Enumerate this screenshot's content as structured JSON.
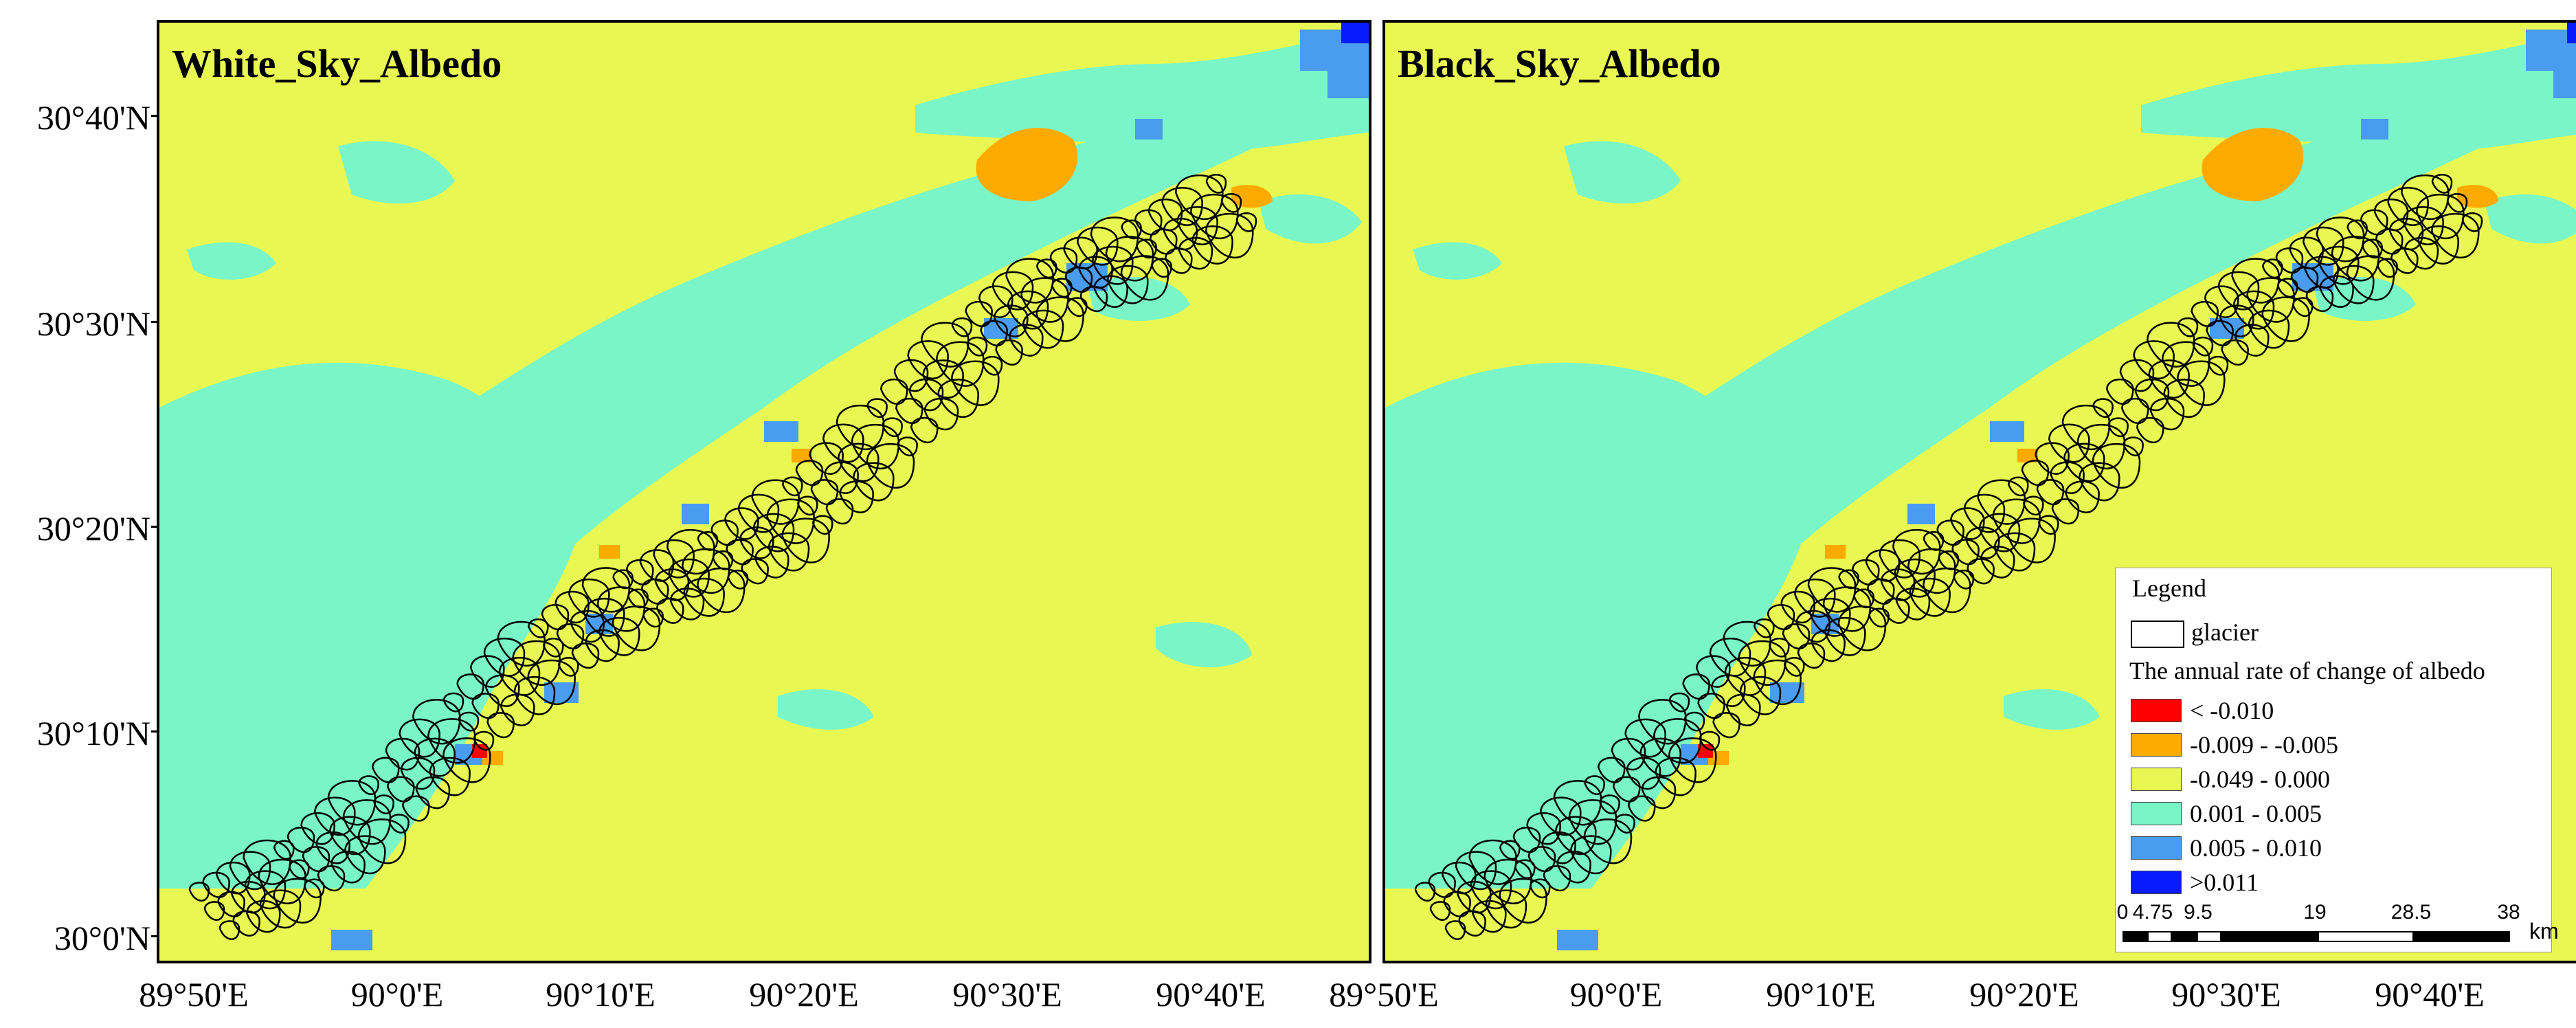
{
  "panels": [
    {
      "title": "White_Sky_Albedo"
    },
    {
      "title": "Black_Sky_Albedo"
    }
  ],
  "latitude_labels": [
    "30°40'N",
    "30°30'N",
    "30°20'N",
    "30°10'N",
    "30°0'N"
  ],
  "longitude_labels": [
    "89°50'E",
    "90°0'E",
    "90°10'E",
    "90°20'E",
    "90°30'E",
    "90°40'E",
    "89°50'E",
    "90°0'E",
    "90°10'E",
    "90°20'E",
    "90°30'E",
    "90°40'E"
  ],
  "legend": {
    "title": "Legend",
    "glacier_label": "glacier",
    "subtitle": "The annual rate of change of albedo",
    "classes": [
      {
        "label": "< -0.010",
        "color": "#ff0000"
      },
      {
        "label": "-0.009 - -0.005",
        "color": "#ffaa00"
      },
      {
        "label": "-0.049 - 0.000",
        "color": "#e8f752"
      },
      {
        "label": "0.001 - 0.005",
        "color": "#7af5c8"
      },
      {
        "label": "0.005 - 0.010",
        "color": "#4a9cf0"
      },
      {
        "label": ">0.011",
        "color": "#0a1aff"
      }
    ],
    "scale_labels": [
      "0",
      "4.75",
      "9.5",
      "19",
      "28.5",
      "38"
    ],
    "scale_unit": "km"
  },
  "colors": {
    "background_class": "#e8f752",
    "low_positive_class": "#7af5c8",
    "mid_positive_class": "#4a9cf0",
    "high_positive_class": "#0a1aff",
    "mid_negative_class": "#ffaa00",
    "strong_negative_class": "#ff0000",
    "glacier_outline": "#000000"
  }
}
